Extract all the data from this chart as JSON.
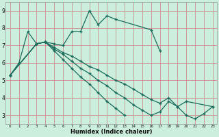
{
  "xlabel": "Humidex (Indice chaleur)",
  "bg_color": "#cceedd",
  "grid_color": "#cc9999",
  "line_color": "#1a6b5a",
  "xlim": [
    -0.5,
    23.5
  ],
  "ylim": [
    2.5,
    9.5
  ],
  "xticks": [
    0,
    1,
    2,
    3,
    4,
    5,
    6,
    7,
    8,
    9,
    10,
    11,
    12,
    13,
    14,
    15,
    16,
    17,
    18,
    19,
    20,
    21,
    22,
    23
  ],
  "yticks": [
    3,
    4,
    5,
    6,
    7,
    8,
    9
  ],
  "lines": [
    {
      "x": [
        0,
        1,
        2,
        3,
        4,
        5,
        6,
        7,
        8,
        9,
        10,
        11,
        12,
        16,
        17
      ],
      "y": [
        5.3,
        6.0,
        7.8,
        7.1,
        7.2,
        7.1,
        7.0,
        7.8,
        7.8,
        9.0,
        8.2,
        8.7,
        8.5,
        7.9,
        6.7
      ]
    },
    {
      "x": [
        0,
        3,
        4,
        5,
        6,
        7,
        8,
        9,
        10,
        11,
        12,
        13,
        14,
        15,
        16,
        17,
        18,
        19,
        20,
        21,
        22,
        23
      ],
      "y": [
        5.3,
        7.1,
        7.2,
        6.9,
        6.6,
        6.4,
        6.1,
        5.8,
        5.6,
        5.3,
        5.0,
        4.8,
        4.5,
        4.2,
        3.9,
        3.7,
        4.0,
        3.5,
        3.0,
        2.8,
        3.1,
        3.5
      ]
    },
    {
      "x": [
        0,
        3,
        4,
        5,
        6,
        7,
        8,
        9,
        10,
        11,
        12,
        13,
        14,
        15,
        16,
        17,
        18,
        19,
        20,
        23
      ],
      "y": [
        5.3,
        7.1,
        7.2,
        6.8,
        6.5,
        6.1,
        5.7,
        5.4,
        5.0,
        4.7,
        4.3,
        4.0,
        3.6,
        3.3,
        3.0,
        3.2,
        3.8,
        3.5,
        3.8,
        3.5
      ]
    },
    {
      "x": [
        0,
        3,
        4,
        5,
        6,
        7,
        8,
        9,
        10,
        11,
        12,
        13
      ],
      "y": [
        5.3,
        7.1,
        7.2,
        6.7,
        6.2,
        5.7,
        5.2,
        4.8,
        4.3,
        3.8,
        3.4,
        3.0
      ]
    }
  ]
}
